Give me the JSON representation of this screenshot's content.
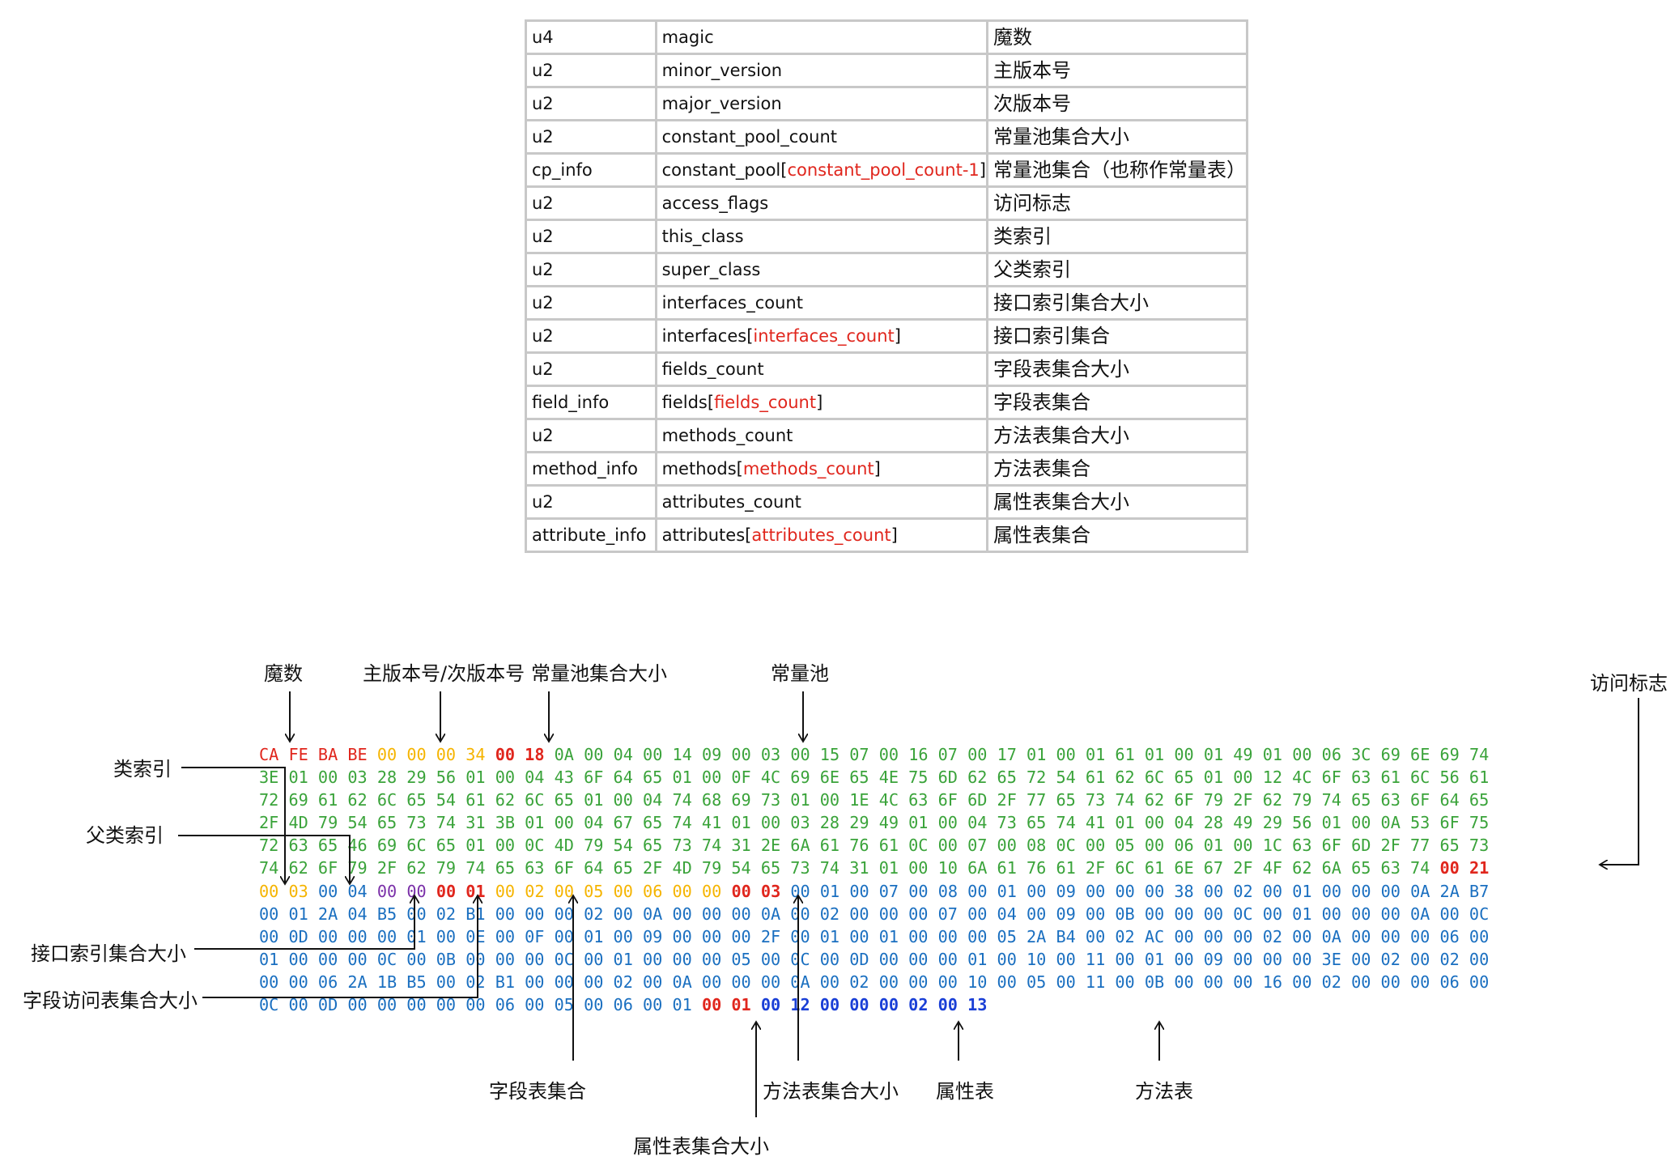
{
  "struct_table": [
    {
      "type": "u4",
      "name": "magic",
      "desc": "魔数"
    },
    {
      "type": "u2",
      "name": "minor_version",
      "desc": "主版本号"
    },
    {
      "type": "u2",
      "name": "major_version",
      "desc": "次版本号"
    },
    {
      "type": "u2",
      "name": "constant_pool_count",
      "desc": "常量池集合大小"
    },
    {
      "type": "cp_info",
      "name": "constant_pool",
      "index": "constant_pool_count-1",
      "desc": "常量池集合（也称作常量表）"
    },
    {
      "type": "u2",
      "name": "access_flags",
      "desc": "访问标志"
    },
    {
      "type": "u2",
      "name": "this_class",
      "desc": "类索引"
    },
    {
      "type": "u2",
      "name": "super_class",
      "desc": "父类索引"
    },
    {
      "type": "u2",
      "name": "interfaces_count",
      "desc": "接口索引集合大小"
    },
    {
      "type": "u2",
      "name": "interfaces",
      "index": "interfaces_count",
      "desc": "接口索引集合"
    },
    {
      "type": "u2",
      "name": "fields_count",
      "desc": "字段表集合大小"
    },
    {
      "type": "field_info",
      "name": "fields",
      "index": "fields_count",
      "desc": "字段表集合"
    },
    {
      "type": "u2",
      "name": "methods_count",
      "desc": "方法表集合大小"
    },
    {
      "type": "method_info",
      "name": "methods",
      "index": "methods_count",
      "desc": "方法表集合"
    },
    {
      "type": "u2",
      "name": "attributes_count",
      "desc": "属性表集合大小"
    },
    {
      "type": "attribute_info",
      "name": "attributes",
      "index": "attributes_count",
      "desc": "属性表集合"
    }
  ],
  "colors": {
    "R": "#e0261d",
    "Y": "#f5b400",
    "G": "#3aa33a",
    "B": "#1a6fc0",
    "P": "#7a2fa8",
    "Rb": "#e0261d",
    "Bb": "#1a3fd6"
  },
  "hex_rows": [
    [
      [
        "R",
        "CA FE BA BE"
      ],
      [
        "Y",
        "00 00 00 34"
      ],
      [
        "Rb",
        "00 18"
      ],
      [
        "G",
        "0A 00 04 00 14 09 00 03 00 15 07 00 16 07 00 17 01 00 01 61 01 00 01 49 01 00 06 3C 69 6E 69 74"
      ]
    ],
    [
      [
        "G",
        "3E 01 00 03 28 29 56 01 00 04 43 6F 64 65 01 00 0F 4C 69 6E 65 4E 75 6D 62 65 72 54 61 62 6C 65 01 00 12 4C 6F 63 61 6C 56 61"
      ]
    ],
    [
      [
        "G",
        "72 69 61 62 6C 65 54 61 62 6C 65 01 00 04 74 68 69 73 01 00 1E 4C 63 6F 6D 2F 77 65 73 74 62 6F 79 2F 62 79 74 65 63 6F 64 65"
      ]
    ],
    [
      [
        "G",
        "2F 4D 79 54 65 73 74 31 3B 01 00 04 67 65 74 41 01 00 03 28 29 49 01 00 04 73 65 74 41 01 00 04 28 49 29 56 01 00 0A 53 6F 75"
      ]
    ],
    [
      [
        "G",
        "72 63 65 46 69 6C 65 01 00 0C 4D 79 54 65 73 74 31 2E 6A 61 76 61 0C 00 07 00 08 0C 00 05 00 06 01 00 1C 63 6F 6D 2F 77 65 73"
      ]
    ],
    [
      [
        "G",
        "74 62 6F 79 2F 62 79 74 65 63 6F 64 65 2F 4D 79 54 65 73 74 31 01 00 10 6A 61 76 61 2F 6C 61 6E 67 2F 4F 62 6A 65 63 74"
      ],
      [
        "Rb",
        "00 21"
      ]
    ],
    [
      [
        "Y",
        "00 03"
      ],
      [
        "B",
        "00 04"
      ],
      [
        "P",
        "00 00"
      ],
      [
        "Rb",
        "00 01"
      ],
      [
        "Y",
        "00 02 00 05 00 06 00 00"
      ],
      [
        "Rb",
        "00 03"
      ],
      [
        "B",
        "00 01 00 07 00 08 00 01 00 09 00 00 00 38 00 02 00 01 00 00 00 0A 2A B7"
      ]
    ],
    [
      [
        "B",
        "00 01 2A 04 B5 00 02 B1 00 00 00 02 00 0A 00 00 00 0A 00 02 00 00 00 07 00 04 00 09 00 0B 00 00 00 0C 00 01 00 00 00 0A 00 0C"
      ]
    ],
    [
      [
        "B",
        "00 0D 00 00 00 01 00 0E 00 0F 00 01 00 09 00 00 00 2F 00 01 00 01 00 00 00 05 2A B4 00 02 AC 00 00 00 02 00 0A 00 00 00 06 00"
      ]
    ],
    [
      [
        "B",
        "01 00 00 00 0C 00 0B 00 00 00 0C 00 01 00 00 00 05 00 0C 00 0D 00 00 00 01 00 10 00 11 00 01 00 09 00 00 00 3E 00 02 00 02 00"
      ]
    ],
    [
      [
        "B",
        "00 00 06 2A 1B B5 00 02 B1 00 00 00 02 00 0A 00 00 00 0A 00 02 00 00 00 10 00 05 00 11 00 0B 00 00 00 16 00 02 00 00 00 06 00"
      ]
    ],
    [
      [
        "B",
        "0C 00 0D 00 00 00 00 00 06 00 05 00 06 00 01"
      ],
      [
        "Rb",
        "00 01"
      ],
      [
        "Bb",
        "00 12 00 00 00 02 00 13"
      ]
    ]
  ],
  "annotations": {
    "magic": "魔数",
    "version": "主版本号/次版本号",
    "cp_count": "常量池集合大小",
    "constant_pool": "常量池",
    "access_flags": "访问标志",
    "this_class": "类索引",
    "super_class": "父类索引",
    "interfaces_count": "接口索引集合大小",
    "fields_count": "字段访问表集合大小",
    "fields": "字段表集合",
    "methods_count": "方法表集合大小",
    "attribute_table": "属性表",
    "methods": "方法表",
    "attributes_count": "属性表集合大小"
  }
}
